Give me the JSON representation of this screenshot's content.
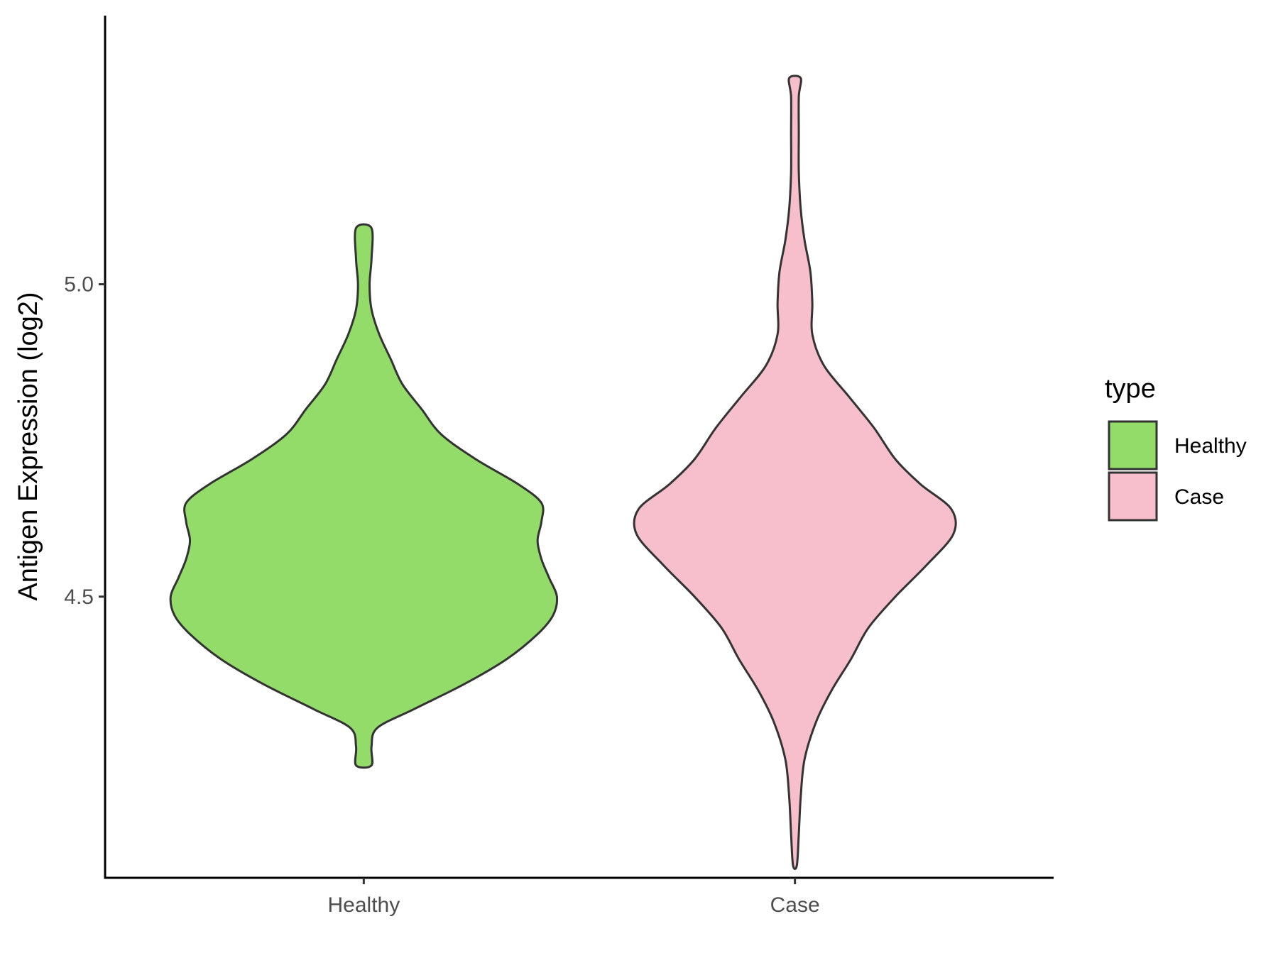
{
  "chart_data": {
    "type": "violin",
    "xlabel": "",
    "ylabel": "Antigen Expression (log2)",
    "ylim": [
      4.05,
      5.43
    ],
    "yticks": [
      4.5,
      5.0
    ],
    "ytick_labels": [
      "4.5",
      "5.0"
    ],
    "categories": [
      "Healthy",
      "Case"
    ],
    "grid": false,
    "legend": {
      "title": "type",
      "position": "right",
      "entries": [
        {
          "label": "Healthy",
          "color": "#93dc6a"
        },
        {
          "label": "Case",
          "color": "#f7bfcb"
        }
      ]
    },
    "series": [
      {
        "name": "Healthy",
        "color": "#93dc6a",
        "y_range": [
          4.23,
          5.09
        ],
        "density_profile": [
          [
            4.23,
            0.04
          ],
          [
            4.26,
            0.04
          ],
          [
            4.29,
            0.07
          ],
          [
            4.32,
            0.26
          ],
          [
            4.36,
            0.52
          ],
          [
            4.4,
            0.74
          ],
          [
            4.44,
            0.9
          ],
          [
            4.47,
            0.98
          ],
          [
            4.5,
            1.0
          ],
          [
            4.53,
            0.96
          ],
          [
            4.56,
            0.92
          ],
          [
            4.59,
            0.9
          ],
          [
            4.62,
            0.92
          ],
          [
            4.65,
            0.92
          ],
          [
            4.68,
            0.8
          ],
          [
            4.72,
            0.58
          ],
          [
            4.76,
            0.4
          ],
          [
            4.8,
            0.3
          ],
          [
            4.84,
            0.2
          ],
          [
            4.88,
            0.14
          ],
          [
            4.92,
            0.08
          ],
          [
            4.96,
            0.04
          ],
          [
            5.0,
            0.03
          ],
          [
            5.04,
            0.04
          ],
          [
            5.09,
            0.04
          ]
        ]
      },
      {
        "name": "Case",
        "color": "#f7bfcb",
        "y_range": [
          4.07,
          5.33
        ],
        "density_profile": [
          [
            4.07,
            0.01
          ],
          [
            4.12,
            0.02
          ],
          [
            4.18,
            0.03
          ],
          [
            4.24,
            0.05
          ],
          [
            4.3,
            0.11
          ],
          [
            4.35,
            0.19
          ],
          [
            4.4,
            0.29
          ],
          [
            4.45,
            0.38
          ],
          [
            4.5,
            0.52
          ],
          [
            4.55,
            0.68
          ],
          [
            4.6,
            0.82
          ],
          [
            4.64,
            0.81
          ],
          [
            4.68,
            0.65
          ],
          [
            4.72,
            0.52
          ],
          [
            4.77,
            0.41
          ],
          [
            4.82,
            0.28
          ],
          [
            4.87,
            0.15
          ],
          [
            4.92,
            0.09
          ],
          [
            4.97,
            0.09
          ],
          [
            5.02,
            0.08
          ],
          [
            5.07,
            0.05
          ],
          [
            5.12,
            0.03
          ],
          [
            5.18,
            0.02
          ],
          [
            5.24,
            0.02
          ],
          [
            5.3,
            0.02
          ],
          [
            5.33,
            0.03
          ]
        ]
      }
    ]
  }
}
